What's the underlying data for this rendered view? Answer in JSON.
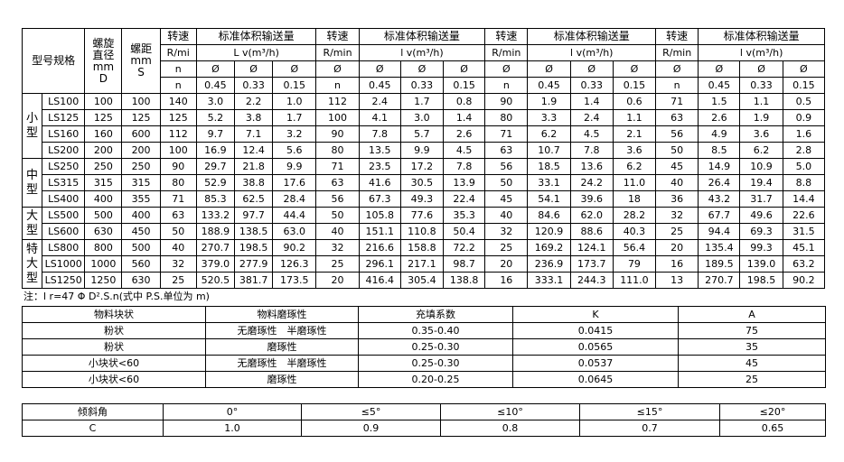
{
  "main_table": {
    "header": {
      "model": "型号规格",
      "diameter": [
        "螺旋",
        "直径",
        "mm",
        "D"
      ],
      "pitch": [
        "螺距",
        "mm",
        "S"
      ],
      "speed_first": [
        "转速",
        "R/mi",
        "n",
        "n"
      ],
      "speed": [
        "转速",
        "R/min",
        "Ø",
        "n"
      ],
      "volume_title": "标准体积输送量",
      "volume_unit_first": "L v(m³/h)",
      "volume_unit": "l v(m³/h)",
      "phi": "Ø",
      "fill": [
        "0.45",
        "0.33",
        "0.15"
      ]
    },
    "groups": [
      {
        "label": "小型",
        "span": 4
      },
      {
        "label": "中型",
        "span": 3
      },
      {
        "label": "大型",
        "span": 2
      },
      {
        "label": "特大型",
        "span": 3
      }
    ],
    "rows": [
      [
        "LS100",
        "100",
        "100",
        "140",
        "3.0",
        "2.2",
        "1.0",
        "112",
        "2.4",
        "1.7",
        "0.8",
        "90",
        "1.9",
        "1.4",
        "0.6",
        "71",
        "1.5",
        "1.1",
        "0.5"
      ],
      [
        "LS125",
        "125",
        "125",
        "125",
        "5.2",
        "3.8",
        "1.7",
        "100",
        "4.1",
        "3.0",
        "1.4",
        "80",
        "3.3",
        "2.4",
        "1.1",
        "63",
        "2.6",
        "1.9",
        "0.9"
      ],
      [
        "LS160",
        "160",
        "600",
        "112",
        "9.7",
        "7.1",
        "3.2",
        "90",
        "7.8",
        "5.7",
        "2.6",
        "71",
        "6.2",
        "4.5",
        "2.1",
        "56",
        "4.9",
        "3.6",
        "1.6"
      ],
      [
        "LS200",
        "200",
        "200",
        "100",
        "16.9",
        "12.4",
        "5.6",
        "80",
        "13.5",
        "9.9",
        "4.5",
        "63",
        "10.7",
        "7.8",
        "3.6",
        "50",
        "8.5",
        "6.2",
        "2.8"
      ],
      [
        "LS250",
        "250",
        "250",
        "90",
        "29.7",
        "21.8",
        "9.9",
        "71",
        "23.5",
        "17.2",
        "7.8",
        "56",
        "18.5",
        "13.6",
        "6.2",
        "45",
        "14.9",
        "10.9",
        "5.0"
      ],
      [
        "LS315",
        "315",
        "315",
        "80",
        "52.9",
        "38.8",
        "17.6",
        "63",
        "41.6",
        "30.5",
        "13.9",
        "50",
        "33.1",
        "24.2",
        "11.0",
        "40",
        "26.4",
        "19.4",
        "8.8"
      ],
      [
        "LS400",
        "400",
        "355",
        "71",
        "85.3",
        "62.5",
        "28.4",
        "56",
        "67.3",
        "49.3",
        "22.4",
        "45",
        "54.1",
        "39.6",
        "18",
        "36",
        "43.2",
        "31.7",
        "14.4"
      ],
      [
        "LS500",
        "500",
        "400",
        "63",
        "133.2",
        "97.7",
        "44.4",
        "50",
        "105.8",
        "77.6",
        "35.3",
        "40",
        "84.6",
        "62.0",
        "28.2",
        "32",
        "67.7",
        "49.6",
        "22.6"
      ],
      [
        "LS600",
        "630",
        "450",
        "50",
        "188.9",
        "138.5",
        "63.0",
        "40",
        "151.1",
        "110.8",
        "50.4",
        "32",
        "120.9",
        "88.6",
        "40.3",
        "25",
        "94.4",
        "69.3",
        "31.5"
      ],
      [
        "LS800",
        "800",
        "500",
        "40",
        "270.7",
        "198.5",
        "90.2",
        "32",
        "216.6",
        "158.8",
        "72.2",
        "25",
        "169.2",
        "124.1",
        "56.4",
        "20",
        "135.4",
        "99.3",
        "45.1"
      ],
      [
        "LS1000",
        "1000",
        "560",
        "32",
        "379.0",
        "277.9",
        "126.3",
        "25",
        "296.1",
        "217.1",
        "98.7",
        "20",
        "236.9",
        "173.7",
        "79",
        "16",
        "189.5",
        "139.0",
        "63.2"
      ],
      [
        "LS1250",
        "1250",
        "630",
        "25",
        "520.5",
        "381.7",
        "173.5",
        "20",
        "416.4",
        "305.4",
        "138.8",
        "16",
        "333.1",
        "244.3",
        "111.0",
        "13",
        "270.7",
        "198.5",
        "90.2"
      ]
    ]
  },
  "note": "注：l r=47 Φ  D².S.n(式中 P.S.单位为 m)",
  "material_table": {
    "headers": [
      "物料块状",
      "物料磨琢性",
      "充填系数",
      "K",
      "A"
    ],
    "rows": [
      [
        "粉状",
        "无磨琢性　半磨琢性",
        "0.35-0.40",
        "0.0415",
        "75"
      ],
      [
        "粉状",
        "磨琢性",
        "0.25-0.30",
        "0.0565",
        "35"
      ],
      [
        "小块状<60",
        "无磨琢性　半磨琢性",
        "0.25-0.30",
        "0.0537",
        "45"
      ],
      [
        "小块状<60",
        "磨琢性",
        "0.20-0.25",
        "0.0645",
        "25"
      ]
    ]
  },
  "angle_table": {
    "headers": [
      "倾斜角",
      "0°",
      "≤5°",
      "≤10°",
      "≤15°",
      "≤20°"
    ],
    "rows": [
      [
        "C",
        "1.0",
        "0.9",
        "0.8",
        "0.7",
        "0.65"
      ]
    ]
  }
}
